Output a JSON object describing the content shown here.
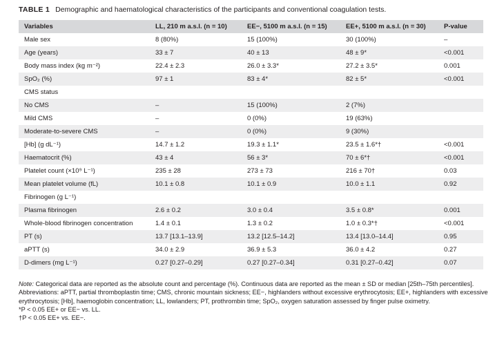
{
  "caption": {
    "label": "TABLE 1",
    "text": "Demographic and haematological characteristics of the participants and conventional coagulation tests."
  },
  "headers": [
    "Variables",
    "LL, 210 m a.s.l. (n = 10)",
    "EE−, 5100 m a.s.l. (n = 15)",
    "EE+, 5100 m a.s.l. (n = 30)",
    "P-value"
  ],
  "rows": [
    [
      "Male sex",
      "8 (80%)",
      "15 (100%)",
      "30 (100%)",
      "–"
    ],
    [
      "Age (years)",
      "33 ± 7",
      "40 ± 13",
      "48 ± 9*",
      "<0.001"
    ],
    [
      "Body mass index (kg m⁻²)",
      "22.4 ± 2.3",
      "26.0 ± 3.3*",
      "27.2 ± 3.5*",
      "0.001"
    ],
    [
      "SpO₂ (%)",
      "97 ± 1",
      "83 ± 4*",
      "82 ± 5*",
      "<0.001"
    ],
    [
      "CMS status",
      "",
      "",
      "",
      ""
    ],
    [
      "No CMS",
      "–",
      "15 (100%)",
      "2 (7%)",
      ""
    ],
    [
      "Mild CMS",
      "–",
      "0 (0%)",
      "19 (63%)",
      ""
    ],
    [
      "Moderate-to-severe CMS",
      "–",
      "0 (0%)",
      "9 (30%)",
      ""
    ],
    [
      "[Hb] (g dL⁻¹)",
      "14.7 ± 1.2",
      "19.3 ± 1.1*",
      "23.5 ± 1.6*†",
      "<0.001"
    ],
    [
      "Haematocrit (%)",
      "43 ± 4",
      "56 ± 3*",
      "70 ± 6*†",
      "<0.001"
    ],
    [
      "Platelet count (×10⁹ L⁻¹)",
      "235 ± 28",
      "273 ± 73",
      "216 ± 70†",
      "0.03"
    ],
    [
      "Mean platelet volume (fL)",
      "10.1 ± 0.8",
      "10.1 ± 0.9",
      "10.0 ± 1.1",
      "0.92"
    ],
    [
      "Fibrinogen (g L⁻¹)",
      "",
      "",
      "",
      ""
    ],
    [
      "Plasma fibrinogen",
      "2.6 ± 0.2",
      "3.0 ± 0.4",
      "3.5 ± 0.8*",
      "0.001"
    ],
    [
      "Whole-blood fibrinogen concentration",
      "1.4 ± 0.1",
      "1.3 ± 0.2",
      "1.0 ± 0.3*†",
      "<0.001"
    ],
    [
      "PT (s)",
      "13.7 [13.1–13.9]",
      "13.2 [12.5–14.2]",
      "13.4 [13.0–14.4]",
      "0.95"
    ],
    [
      "aPTT (s)",
      "34.0 ± 2.9",
      "36.9 ± 5.3",
      "36.0 ± 4.2",
      "0.27"
    ],
    [
      "D-dimers (mg L⁻¹)",
      "0.27 [0.27–0.29]",
      "0.27 [0.27–0.34]",
      "0.31 [0.27–0.42]",
      "0.07"
    ]
  ],
  "notes": {
    "note_label": "Note:",
    "note_text": " Categorical data are reported as the absolute count and percentage (%). Continuous data are reported as the mean ± SD or median [25th–75th percentiles].",
    "abbreviations": "Abbreviations: aPTT, partial thromboplastin time; CMS, chronic mountain sickness; EE−, highlanders without excessive erythrocytosis; EE+, highlanders with excessive erythrocytosis; [Hb], haemoglobin concentration; LL, lowlanders; PT, prothrombin time; SpO₂, oxygen saturation assessed by finger pulse oximetry.",
    "footnote_1": "*P < 0.05 EE+ or EE− vs. LL.",
    "footnote_2": "†P < 0.05 EE+ vs. EE−."
  }
}
